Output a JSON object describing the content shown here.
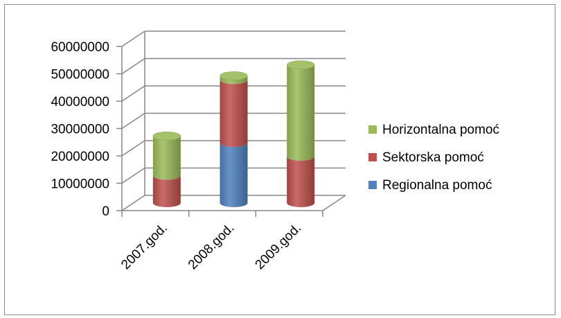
{
  "chart_data": {
    "type": "bar",
    "stacked": true,
    "style": "3d-cylinder",
    "categories": [
      "2007.god.",
      "2008.god.",
      "2009.god."
    ],
    "series": [
      {
        "name": "Regionalna pomoć",
        "values": [
          0,
          22000000,
          0
        ],
        "color": "#4f81bd"
      },
      {
        "name": "Sektorska pomoć",
        "values": [
          10000000,
          23000000,
          17000000
        ],
        "color": "#c0504d"
      },
      {
        "name": "Horizontalna pomoć",
        "values": [
          14500000,
          1500000,
          33500000
        ],
        "color": "#9bbb59"
      }
    ],
    "ylim": [
      0,
      60000000
    ],
    "yticks": [
      "0",
      "10000000",
      "20000000",
      "30000000",
      "40000000",
      "50000000",
      "60000000"
    ],
    "grid": true,
    "legend_position": "right",
    "legend_order": [
      "Horizontalna pomoć",
      "Sektorska pomoć",
      "Regionalna pomoć"
    ]
  }
}
